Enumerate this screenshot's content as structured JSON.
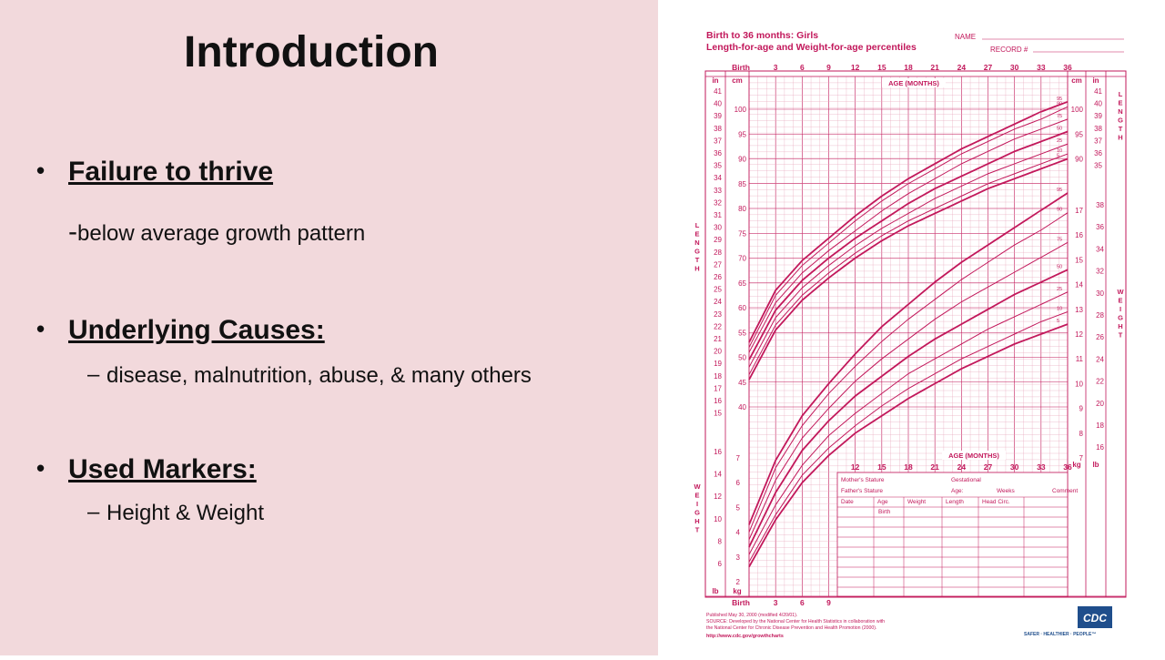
{
  "slide": {
    "title": "Introduction",
    "bullets": [
      {
        "heading": "Failure to thrive",
        "sub": "below average growth pattern",
        "sub_prefix": "-"
      },
      {
        "heading": "Underlying Causes:",
        "sub": "disease, malnutrition, abuse, & many others",
        "sub_prefix": "–"
      },
      {
        "heading": "Used Markers:",
        "sub": "Height & Weight",
        "sub_prefix": "–"
      }
    ]
  },
  "chart_doc": {
    "title_line1": "Birth to 36 months: Girls",
    "title_line2": "Length-for-age and Weight-for-age percentiles",
    "name_label": "NAME",
    "record_label": "RECORD #",
    "age_axis_label": "AGE (MONTHS)",
    "age_ticks": [
      "Birth",
      "3",
      "6",
      "9",
      "12",
      "15",
      "18",
      "21",
      "24",
      "27",
      "30",
      "33",
      "36"
    ],
    "age_ticks_bottom": [
      "Birth",
      "3",
      "6",
      "9"
    ],
    "age_ticks_mid": [
      "12",
      "15",
      "18",
      "21",
      "24",
      "27",
      "30",
      "33",
      "36"
    ],
    "in_label": "in",
    "cm_label": "cm",
    "kg_label": "kg",
    "lb_label": "lb",
    "length_vertical": "LENGTH",
    "weight_vertical": "WEIGHT",
    "in_ticks_left": [
      "41",
      "40",
      "39",
      "38",
      "37",
      "36",
      "35",
      "34",
      "33",
      "32",
      "31",
      "30",
      "29",
      "28",
      "27",
      "26",
      "25",
      "24",
      "23",
      "22",
      "21",
      "20",
      "19",
      "18",
      "17",
      "16",
      "15"
    ],
    "in_ticks_right": [
      "41",
      "40",
      "39",
      "38",
      "37",
      "36",
      "35"
    ],
    "cm_ticks_left": [
      "100",
      "95",
      "90",
      "85",
      "80",
      "75",
      "70",
      "65",
      "60",
      "55",
      "50",
      "45",
      "40"
    ],
    "cm_ticks_right": [
      "100",
      "95",
      "90"
    ],
    "kg_ticks_right": [
      "17",
      "16",
      "15",
      "14",
      "13",
      "12",
      "11",
      "10",
      "9",
      "8",
      "7"
    ],
    "lb_ticks_right": [
      "38",
      "36",
      "34",
      "32",
      "30",
      "28",
      "26",
      "24",
      "22",
      "20",
      "18",
      "16"
    ],
    "lb_ticks_left": [
      "16",
      "14",
      "12",
      "10",
      "8",
      "6"
    ],
    "kg_ticks_left": [
      "7",
      "6",
      "5",
      "4",
      "3",
      "2"
    ],
    "percentiles_length": [
      "95",
      "90",
      "75",
      "50",
      "25",
      "10",
      "5"
    ],
    "percentiles_weight": [
      "95",
      "90",
      "75",
      "50",
      "25",
      "10",
      "5"
    ],
    "form": {
      "mother": "Mother's Stature",
      "father": "Father's Stature",
      "gestational": "Gestational",
      "age": "Age:",
      "weeks": "Weeks",
      "comment": "Comment",
      "cols": [
        "Date",
        "Age",
        "Weight",
        "Length",
        "Head Circ."
      ],
      "birth": "Birth"
    },
    "footer": {
      "published": "Published May 30, 2000 (modified 4/20/01).",
      "source1": "SOURCE: Developed by the National Center for Health Statistics in collaboration with",
      "source2": "the National Center for Chronic Disease Prevention and Health Promotion (2000).",
      "url": "http://www.cdc.gov/growthcharts"
    },
    "logo_text": "CDC",
    "tagline": "SAFER · HEALTHIER · PEOPLE™"
  },
  "colors": {
    "chart": "#c2185b",
    "grid": "#e8a6bc",
    "slide_bg": "#f2d9dc"
  },
  "chart_data": {
    "type": "line",
    "title": "Birth to 36 months: Girls Length-for-age and Weight-for-age percentiles",
    "xlabel": "AGE (MONTHS)",
    "x": [
      0,
      3,
      6,
      9,
      12,
      15,
      18,
      21,
      24,
      27,
      30,
      33,
      36
    ],
    "xlim": [
      0,
      36
    ],
    "length_ylabel": "LENGTH (cm)",
    "length_ylim": [
      38,
      104
    ],
    "length_series": [
      {
        "name": "95",
        "values": [
          53.0,
          63.5,
          69.5,
          74.0,
          78.5,
          82.5,
          86.0,
          89.0,
          92.0,
          94.5,
          97.0,
          99.5,
          101.5
        ]
      },
      {
        "name": "90",
        "values": [
          52.0,
          62.5,
          68.5,
          73.0,
          77.5,
          81.5,
          85.0,
          88.0,
          91.0,
          93.5,
          96.0,
          98.0,
          100.5
        ]
      },
      {
        "name": "75",
        "values": [
          51.0,
          61.0,
          67.0,
          71.5,
          75.5,
          79.5,
          83.0,
          86.0,
          89.0,
          91.5,
          94.0,
          96.0,
          98.0
        ]
      },
      {
        "name": "50",
        "values": [
          49.5,
          59.5,
          65.5,
          70.0,
          74.0,
          77.5,
          81.0,
          84.0,
          86.5,
          89.0,
          91.5,
          93.5,
          95.5
        ]
      },
      {
        "name": "25",
        "values": [
          48.0,
          58.0,
          64.0,
          68.5,
          72.5,
          76.0,
          79.0,
          82.0,
          84.5,
          87.0,
          89.0,
          91.0,
          93.0
        ]
      },
      {
        "name": "10",
        "values": [
          46.5,
          56.5,
          62.5,
          67.0,
          71.0,
          74.5,
          77.5,
          80.0,
          82.5,
          85.0,
          87.0,
          89.0,
          91.0
        ]
      },
      {
        "name": "5",
        "values": [
          45.5,
          55.5,
          61.5,
          66.0,
          70.0,
          73.5,
          76.5,
          79.0,
          81.5,
          84.0,
          86.0,
          88.0,
          90.0
        ]
      }
    ],
    "weight_ylabel": "WEIGHT (kg)",
    "weight_ylim": [
      1.5,
      18
    ],
    "weight_series": [
      {
        "name": "95",
        "values": [
          4.3,
          6.9,
          8.7,
          10.0,
          11.2,
          12.3,
          13.2,
          14.1,
          14.9,
          15.6,
          16.3,
          17.0,
          17.7
        ]
      },
      {
        "name": "90",
        "values": [
          4.0,
          6.6,
          8.3,
          9.6,
          10.7,
          11.7,
          12.6,
          13.4,
          14.2,
          14.9,
          15.6,
          16.2,
          16.9
        ]
      },
      {
        "name": "75",
        "values": [
          3.7,
          6.1,
          7.8,
          9.0,
          10.1,
          11.0,
          11.8,
          12.6,
          13.3,
          13.9,
          14.5,
          15.1,
          15.7
        ]
      },
      {
        "name": "50",
        "values": [
          3.4,
          5.6,
          7.3,
          8.5,
          9.5,
          10.3,
          11.1,
          11.8,
          12.4,
          13.0,
          13.6,
          14.1,
          14.6
        ]
      },
      {
        "name": "25",
        "values": [
          3.1,
          5.1,
          6.7,
          7.9,
          8.8,
          9.6,
          10.4,
          11.0,
          11.6,
          12.2,
          12.7,
          13.2,
          13.7
        ]
      },
      {
        "name": "10",
        "values": [
          2.8,
          4.7,
          6.3,
          7.4,
          8.3,
          9.1,
          9.8,
          10.4,
          11.0,
          11.5,
          12.0,
          12.5,
          12.9
        ]
      },
      {
        "name": "5",
        "values": [
          2.6,
          4.5,
          6.0,
          7.1,
          8.0,
          8.7,
          9.4,
          10.0,
          10.6,
          11.1,
          11.6,
          12.0,
          12.4
        ]
      }
    ],
    "grid": true
  }
}
